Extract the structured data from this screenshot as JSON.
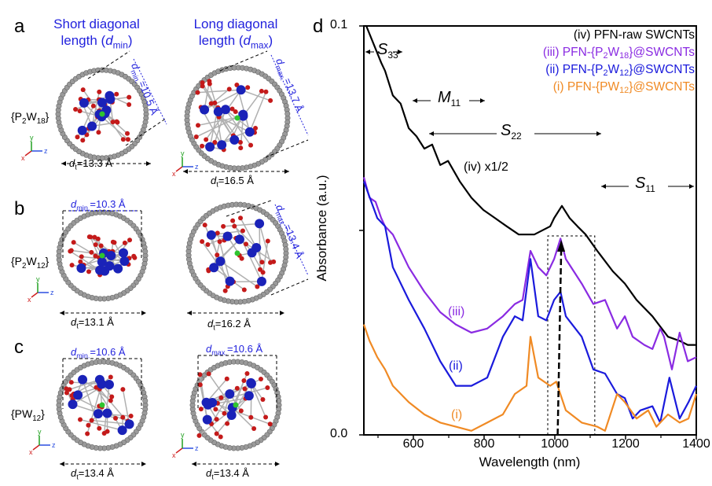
{
  "panels": {
    "a": {
      "label": "a",
      "head_short": {
        "line1": "Short diagonal",
        "line2": "length (",
        "sym": "d",
        "sub": "min",
        "close": ")"
      },
      "head_long": {
        "line1": "Long diagonal",
        "line2": "length (",
        "sym": "d",
        "sub": "max",
        "close": ")"
      },
      "compound": {
        "pre": "{P",
        "s1": "2",
        "mid": "W",
        "s2": "18",
        "post": "}"
      },
      "dmin": {
        "sym": "d",
        "sub": "min.",
        "val": "=10.5 Å"
      },
      "dmax": {
        "sym": "d",
        "sub": "max.",
        "val": "=13.7 Å"
      },
      "dt1": {
        "sym": "d",
        "sub": "t",
        "val": "=13.3 Å"
      },
      "dt2": {
        "sym": "d",
        "sub": "t",
        "val": "=16.5 Å"
      }
    },
    "b": {
      "label": "b",
      "compound": {
        "pre": "{P",
        "s1": "2",
        "mid": "W",
        "s2": "12",
        "post": "}"
      },
      "dmin": {
        "sym": "d",
        "sub": "min.",
        "val": "=10.3 Å"
      },
      "dmax": {
        "sym": "d",
        "sub": "max.",
        "val": "=13.4 Å"
      },
      "dt1": {
        "sym": "d",
        "sub": "t",
        "val": "=13.1 Å"
      },
      "dt2": {
        "sym": "d",
        "sub": "t",
        "val": "=16.2 Å"
      }
    },
    "c": {
      "label": "c",
      "compound": {
        "pre": "{PW",
        "s1": "12",
        "post": "}"
      },
      "dmin": {
        "sym": "d",
        "sub": "min.",
        "val": "=10.6 Å"
      },
      "dmax": {
        "sym": "d",
        "sub": "max.",
        "val": "=10.6 Å"
      },
      "dt1": {
        "sym": "d",
        "sub": "t",
        "val": "=13.4 Å"
      },
      "dt2": {
        "sym": "d",
        "sub": "t",
        "val": "=13.4 Å"
      }
    },
    "axes_labels": {
      "x": "x",
      "y": "y",
      "z": "z"
    }
  },
  "colors": {
    "W": "#1a22b8",
    "O": "#c41a1a",
    "P": "#2fc42f",
    "C": "#9a9a9a",
    "iv": "#000000",
    "iii": "#8a2be2",
    "ii": "#1a1adc",
    "i": "#f08a24",
    "blue_text": "#2222dd"
  },
  "chart_data": {
    "type": "line",
    "panel_label": "d",
    "xlabel": "Wavelength (nm)",
    "ylabel": "Absorbance (a.u.)",
    "xlim": [
      460,
      1400
    ],
    "ylim": [
      0,
      0.1
    ],
    "xticks": [
      600,
      800,
      1000,
      1200,
      1400
    ],
    "xtick_labels": [
      "600",
      "800",
      "1000",
      "1200",
      "1400"
    ],
    "yticks": [
      0.0,
      0.05,
      0.1
    ],
    "ytick_labels": [
      "0.0",
      "",
      "0.1"
    ],
    "legend_position": "top-right",
    "legend": [
      {
        "id": "iv",
        "pre": "(iv) PFN-raw SWCNTs"
      },
      {
        "id": "iii",
        "pre": "(iii) PFN-{P",
        "s1": "2",
        "mid": "W",
        "s2": "18",
        "post": "}@SWCNTs"
      },
      {
        "id": "ii",
        "pre": "(ii) PFN-{P",
        "s1": "2",
        "mid": "W",
        "s2": "12",
        "post": "}@SWCNTs"
      },
      {
        "id": "i",
        "pre": "(i) PFN-{PW",
        "s1": "12",
        "post": "}@SWCNTs"
      }
    ],
    "annotations": {
      "S33": {
        "sym": "S",
        "sub": "33"
      },
      "M11": {
        "sym": "M",
        "sub": "11"
      },
      "S22": {
        "sym": "S",
        "sub": "22"
      },
      "S11": {
        "sym": "S",
        "sub": "11"
      },
      "iv": "(iv) x1/2",
      "iii": "(iii)",
      "ii": "(ii)",
      "i": "(i)"
    },
    "highlight_box_nm": [
      980,
      1113
    ],
    "shift_arrow_nm": [
      1008,
      1018
    ],
    "series": [
      {
        "id": "iv",
        "name": "(iv) PFN-raw SWCNTs (x1/2)",
        "points": [
          [
            467,
            0.1
          ],
          [
            509,
            0.091
          ],
          [
            520,
            0.089
          ],
          [
            542,
            0.083
          ],
          [
            564,
            0.081
          ],
          [
            587,
            0.075
          ],
          [
            609,
            0.073
          ],
          [
            631,
            0.07
          ],
          [
            653,
            0.071
          ],
          [
            676,
            0.066
          ],
          [
            698,
            0.067
          ],
          [
            731,
            0.062
          ],
          [
            764,
            0.058
          ],
          [
            798,
            0.055
          ],
          [
            831,
            0.053
          ],
          [
            864,
            0.051
          ],
          [
            898,
            0.049
          ],
          [
            942,
            0.049
          ],
          [
            987,
            0.051
          ],
          [
            998,
            0.053
          ],
          [
            1020,
            0.056
          ],
          [
            1042,
            0.053
          ],
          [
            1064,
            0.051
          ],
          [
            1087,
            0.049
          ],
          [
            1120,
            0.045
          ],
          [
            1164,
            0.04
          ],
          [
            1198,
            0.037
          ],
          [
            1231,
            0.033
          ],
          [
            1276,
            0.029
          ],
          [
            1320,
            0.024
          ],
          [
            1353,
            0.023
          ],
          [
            1376,
            0.022
          ],
          [
            1400,
            0.022
          ]
        ]
      },
      {
        "id": "iii",
        "name": "(iii) PFN-{P2W18}@SWCNTs",
        "points": [
          [
            460,
            0.063
          ],
          [
            476,
            0.058
          ],
          [
            493,
            0.057
          ],
          [
            509,
            0.053
          ],
          [
            520,
            0.051
          ],
          [
            542,
            0.049
          ],
          [
            587,
            0.041
          ],
          [
            631,
            0.035
          ],
          [
            676,
            0.03
          ],
          [
            720,
            0.027
          ],
          [
            764,
            0.025
          ],
          [
            809,
            0.026
          ],
          [
            853,
            0.029
          ],
          [
            887,
            0.032
          ],
          [
            909,
            0.033
          ],
          [
            931,
            0.045
          ],
          [
            953,
            0.041
          ],
          [
            976,
            0.039
          ],
          [
            998,
            0.043
          ],
          [
            1016,
            0.048
          ],
          [
            1031,
            0.043
          ],
          [
            1076,
            0.037
          ],
          [
            1109,
            0.032
          ],
          [
            1142,
            0.033
          ],
          [
            1176,
            0.026
          ],
          [
            1198,
            0.029
          ],
          [
            1220,
            0.024
          ],
          [
            1253,
            0.022
          ],
          [
            1276,
            0.021
          ],
          [
            1298,
            0.026
          ],
          [
            1309,
            0.024
          ],
          [
            1331,
            0.016
          ],
          [
            1353,
            0.025
          ],
          [
            1376,
            0.018
          ],
          [
            1400,
            0.019
          ]
        ]
      },
      {
        "id": "ii",
        "name": "(ii) PFN-{P2W12}@SWCNTs",
        "points": [
          [
            460,
            0.062
          ],
          [
            498,
            0.053
          ],
          [
            520,
            0.051
          ],
          [
            542,
            0.041
          ],
          [
            587,
            0.033
          ],
          [
            631,
            0.026
          ],
          [
            676,
            0.018
          ],
          [
            720,
            0.012
          ],
          [
            764,
            0.012
          ],
          [
            809,
            0.014
          ],
          [
            853,
            0.024
          ],
          [
            887,
            0.029
          ],
          [
            909,
            0.028
          ],
          [
            931,
            0.043
          ],
          [
            953,
            0.029
          ],
          [
            976,
            0.028
          ],
          [
            998,
            0.033
          ],
          [
            1016,
            0.035
          ],
          [
            1031,
            0.029
          ],
          [
            1076,
            0.024
          ],
          [
            1109,
            0.016
          ],
          [
            1142,
            0.015
          ],
          [
            1176,
            0.01
          ],
          [
            1198,
            0.009
          ],
          [
            1220,
            0.004
          ],
          [
            1242,
            0.006
          ],
          [
            1276,
            0.007
          ],
          [
            1298,
            0.003
          ],
          [
            1324,
            0.014
          ],
          [
            1353,
            0.004
          ],
          [
            1378,
            0.008
          ],
          [
            1400,
            0.012
          ]
        ]
      },
      {
        "id": "i",
        "name": "(i) PFN-{PW12}@SWCNTs",
        "points": [
          [
            460,
            0.027
          ],
          [
            476,
            0.023
          ],
          [
            498,
            0.019
          ],
          [
            520,
            0.016
          ],
          [
            542,
            0.012
          ],
          [
            587,
            0.008
          ],
          [
            631,
            0.005
          ],
          [
            676,
            0.003
          ],
          [
            720,
            0.002
          ],
          [
            764,
            0.001
          ],
          [
            809,
            0.003
          ],
          [
            853,
            0.005
          ],
          [
            887,
            0.01
          ],
          [
            920,
            0.012
          ],
          [
            931,
            0.024
          ],
          [
            953,
            0.014
          ],
          [
            987,
            0.012
          ],
          [
            1004,
            0.013
          ],
          [
            1031,
            0.006
          ],
          [
            1076,
            0.003
          ],
          [
            1120,
            0.002
          ],
          [
            1142,
            0.001
          ],
          [
            1176,
            0.01
          ],
          [
            1198,
            0.008
          ],
          [
            1231,
            0.004
          ],
          [
            1264,
            0.006
          ],
          [
            1287,
            0.002
          ],
          [
            1320,
            0.005
          ],
          [
            1353,
            0.003
          ],
          [
            1378,
            0.004
          ],
          [
            1400,
            0.01
          ]
        ]
      }
    ]
  }
}
